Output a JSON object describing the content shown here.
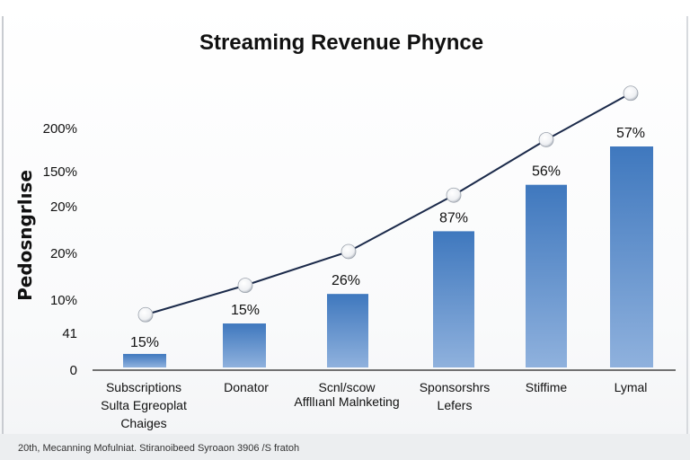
{
  "chart_data": {
    "type": "bar",
    "title": "Streaming Revenue Phynce",
    "ylabel": "Pedosngrlıse",
    "xlabel": "",
    "y_tick_labels": [
      "200%",
      "150%",
      "20%",
      "20%",
      "10%",
      "41",
      "0"
    ],
    "categories": [
      "Subscriptions Sulta Egreoplat Chaiges",
      "Donator",
      "Scnlscow Affllıanl Malnketing",
      "Sponsorshrs Lefers",
      "Stiffime",
      "Lymal"
    ],
    "category_lines": [
      [
        "Subscriptions",
        "Sulta Egreoplat",
        "Chaiges"
      ],
      [
        "Donator"
      ],
      [
        "Scnl/scow",
        "Affllıanl Malnketing"
      ],
      [
        "Sponsorshrs",
        "Lefers"
      ],
      [
        "Stiffime"
      ],
      [
        "Lymal"
      ]
    ],
    "values": [
      15,
      15,
      26,
      87,
      56,
      57
    ],
    "data_labels": [
      "15%",
      "15%",
      "26%",
      "87%",
      "56%",
      "57%"
    ],
    "bar_levels": [
      0.06,
      0.195,
      0.326,
      0.604,
      0.81,
      0.98
    ],
    "trend_levels": [
      0.234,
      0.364,
      0.514,
      0.764,
      1.01,
      1.216
    ],
    "bar_color": "#3f78be",
    "bar_color_light": "#8fb1dd",
    "line_color": "#1b2a4a",
    "marker_color": "#ffffff",
    "grid": false,
    "legend": "none"
  },
  "footer": "20th, Mecanning Mofulniat. Stiranoibeed Syroaon 3906 /S fratoh"
}
